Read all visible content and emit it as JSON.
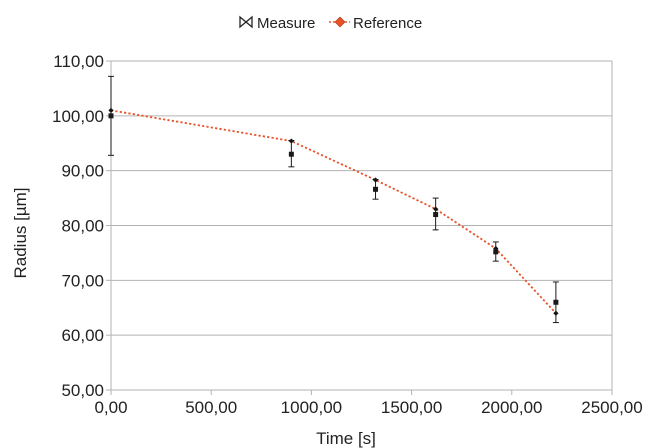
{
  "chart_data": {
    "type": "line",
    "xlabel": "Time [s]",
    "ylabel": "Radius [µm]",
    "xlim": [
      0,
      2500
    ],
    "ylim": [
      50,
      110
    ],
    "x_ticks": [
      "0,00",
      "500,00",
      "1000,00",
      "1500,00",
      "2000,00",
      "2500,00"
    ],
    "y_ticks": [
      "50,00",
      "60,00",
      "70,00",
      "80,00",
      "90,00",
      "100,00",
      "110,00"
    ],
    "grid": "horizontal",
    "legend": "top-center",
    "series": [
      {
        "name": "Measure",
        "marker": "square",
        "color": "#1a1a1a",
        "points": [
          {
            "x": 0,
            "y": 100.0,
            "err_low": 92.8,
            "err_high": 107.2
          },
          {
            "x": 900,
            "y": 93.0,
            "err_low": 90.7,
            "err_high": 95.5
          },
          {
            "x": 1320,
            "y": 86.6,
            "err_low": 84.8,
            "err_high": 88.4
          },
          {
            "x": 1620,
            "y": 82.0,
            "err_low": 79.2,
            "err_high": 85.0
          },
          {
            "x": 1920,
            "y": 75.2,
            "err_low": 73.5,
            "err_high": 77.0
          },
          {
            "x": 2220,
            "y": 66.0,
            "err_low": 62.3,
            "err_high": 69.7
          }
        ]
      },
      {
        "name": "Reference",
        "marker": "diamond",
        "line": "dotted",
        "color": "#e8522a",
        "points": [
          {
            "x": 0,
            "y": 101.0
          },
          {
            "x": 900,
            "y": 95.4
          },
          {
            "x": 1320,
            "y": 88.3
          },
          {
            "x": 1620,
            "y": 83.0
          },
          {
            "x": 1920,
            "y": 75.8
          },
          {
            "x": 2220,
            "y": 64.0
          }
        ]
      }
    ]
  }
}
